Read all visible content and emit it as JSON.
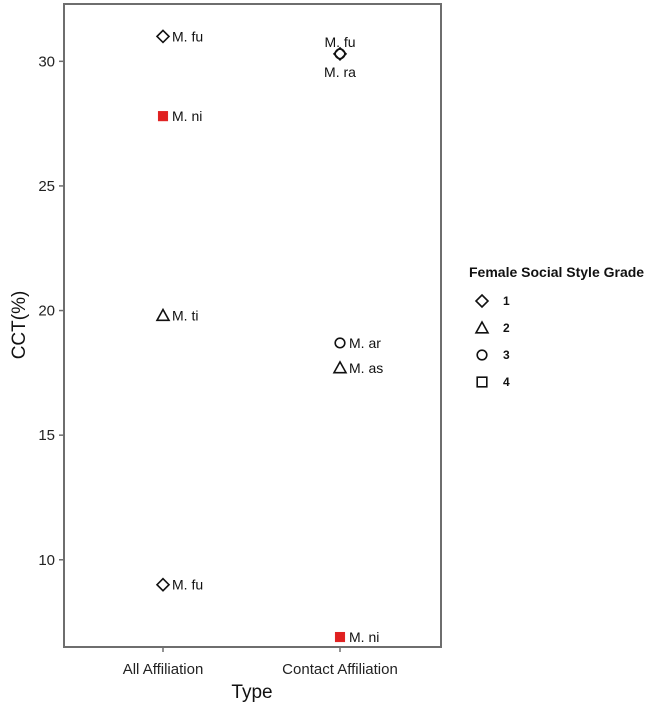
{
  "chart_data": {
    "type": "scatter",
    "xlabel": "Type",
    "ylabel": "CCT(%)",
    "categories": [
      "All Affiliation",
      "Contact Affiliation"
    ],
    "ylim": [
      6.5,
      32.3
    ],
    "yticks": [
      10,
      15,
      20,
      25,
      30
    ],
    "grid": false,
    "legend": {
      "title": "Female Social Style Grade",
      "placement": "right",
      "entries": [
        {
          "grade": "1",
          "shape": "diamond"
        },
        {
          "grade": "2",
          "shape": "triangle"
        },
        {
          "grade": "3",
          "shape": "circle"
        },
        {
          "grade": "4",
          "shape": "square"
        }
      ]
    },
    "points": [
      {
        "category": "All Affiliation",
        "y": 31.0,
        "label": "M. fu",
        "grade": "1",
        "shape": "diamond",
        "color": "#111111"
      },
      {
        "category": "All Affiliation",
        "y": 27.8,
        "label": "M. ni",
        "grade": "4",
        "shape": "square",
        "color": "#e02020"
      },
      {
        "category": "All Affiliation",
        "y": 19.8,
        "label": "M. ti",
        "grade": "2",
        "shape": "triangle",
        "color": "#111111"
      },
      {
        "category": "All Affiliation",
        "y": 9.0,
        "label": "M. fu",
        "grade": "1",
        "shape": "diamond",
        "color": "#111111"
      },
      {
        "category": "Contact Affiliation",
        "y": 30.3,
        "label": "M. fu",
        "grade": "1",
        "shape": "diamond",
        "color": "#111111"
      },
      {
        "category": "Contact Affiliation",
        "y": 30.3,
        "label": "M. ra",
        "grade": "3",
        "shape": "circle",
        "color": "#111111"
      },
      {
        "category": "Contact Affiliation",
        "y": 18.7,
        "label": "M. ar",
        "grade": "3",
        "shape": "circle",
        "color": "#111111"
      },
      {
        "category": "Contact Affiliation",
        "y": 17.7,
        "label": "M. as",
        "grade": "2",
        "shape": "triangle",
        "color": "#111111"
      },
      {
        "category": "Contact Affiliation",
        "y": 6.9,
        "label": "M. ni",
        "grade": "4",
        "shape": "square",
        "color": "#e02020"
      }
    ]
  }
}
